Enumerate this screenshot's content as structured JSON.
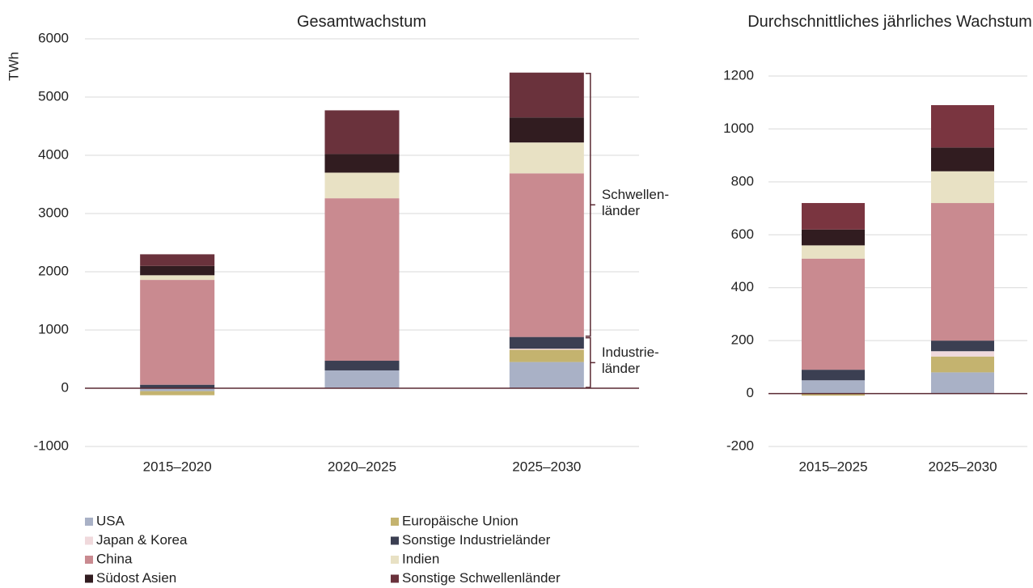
{
  "chart_data": [
    {
      "type": "stacked-bar",
      "title": "Gesamtwachstum",
      "y_label": "TWh",
      "categories": [
        "2015–2020",
        "2020–2025",
        "2025–2030"
      ],
      "ylim": [
        -1000,
        6000
      ],
      "yticks": [
        -1000,
        0,
        1000,
        2000,
        3000,
        4000,
        5000,
        6000
      ],
      "grid": true,
      "annotations": [
        "Industrie-länder",
        "Schwellen-länder"
      ],
      "series": [
        {
          "name": "USA",
          "color": "#a9b1c6",
          "values": [
            -50,
            306,
            450
          ]
        },
        {
          "name": "Europäische Union",
          "color": "#c4b36f",
          "values": [
            -70,
            0,
            210
          ]
        },
        {
          "name": "Japan & Korea",
          "color": "#f0d9dc",
          "values": [
            0,
            0,
            20
          ]
        },
        {
          "name": "Sonstige Industrieländer",
          "color": "#3b3f52",
          "values": [
            60,
            166,
            200
          ]
        },
        {
          "name": "China",
          "color": "#c98a90",
          "values": [
            1800,
            2790,
            2810
          ]
        },
        {
          "name": "Indien",
          "color": "#e8e1c4",
          "values": [
            80,
            440,
            530
          ]
        },
        {
          "name": "Südost Asien",
          "color": "#311c20",
          "values": [
            160,
            320,
            430
          ]
        },
        {
          "name": "Sonstige Schwellenländer",
          "color": "#6a323c",
          "values": [
            200,
            750,
            770
          ]
        }
      ]
    },
    {
      "type": "stacked-bar",
      "title": "Durchschnittliches jährliches Wachstum",
      "categories": [
        "2015–2025",
        "2025–2030"
      ],
      "ylim": [
        -200,
        1200
      ],
      "yticks": [
        -200,
        0,
        200,
        400,
        600,
        800,
        1000,
        1200
      ],
      "grid": true,
      "series": [
        {
          "name": "USA",
          "color": "#a9b1c6",
          "values": [
            50,
            80
          ]
        },
        {
          "name": "Europäische Union",
          "color": "#c4b36f",
          "values": [
            -8,
            60
          ]
        },
        {
          "name": "Japan & Korea",
          "color": "#f0d9dc",
          "values": [
            0,
            20
          ]
        },
        {
          "name": "Sonstige Industrieländer",
          "color": "#3b3f52",
          "values": [
            40,
            40
          ]
        },
        {
          "name": "China",
          "color": "#c98a90",
          "values": [
            420,
            520
          ]
        },
        {
          "name": "Indien",
          "color": "#e8e1c4",
          "values": [
            50,
            120
          ]
        },
        {
          "name": "Südost Asien",
          "color": "#311c20",
          "values": [
            60,
            90
          ]
        },
        {
          "name": "Sonstige Schwellenländer",
          "color": "#7a3540",
          "values": [
            100,
            160
          ]
        }
      ]
    }
  ]
}
